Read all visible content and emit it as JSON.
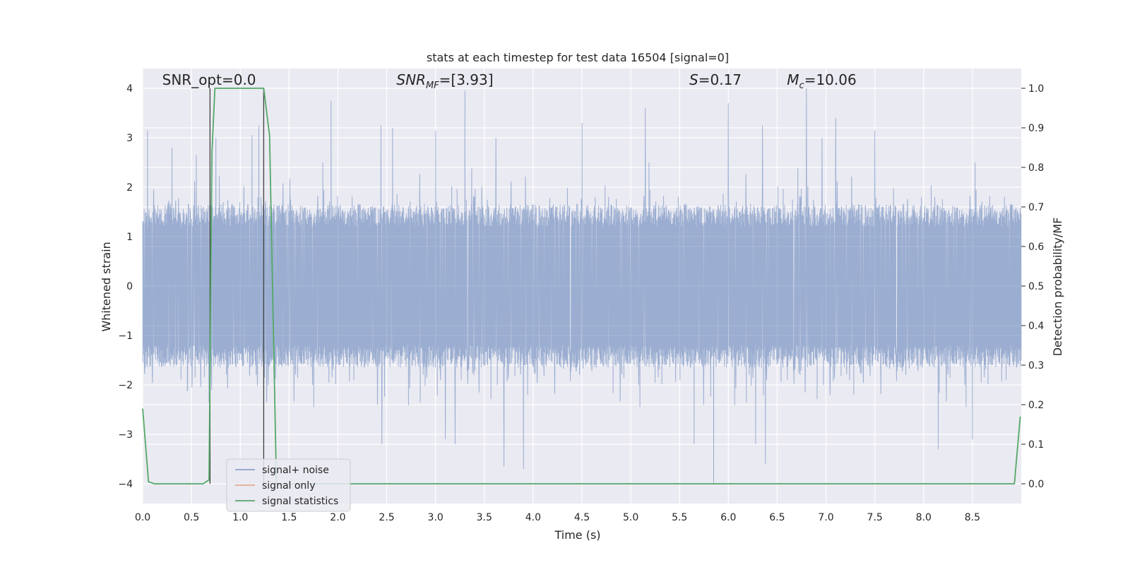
{
  "chart_data": {
    "type": "line",
    "title": "stats at each timestep for test data 16504 [signal=0]",
    "xlabel": "Time (s)",
    "ylabel": "Whitened strain",
    "y2label": "Detection probability/MF",
    "xlim": [
      0.0,
      9.0
    ],
    "ylim": [
      -4.4,
      4.4
    ],
    "y2lim": [
      -0.05,
      1.05
    ],
    "x_ticks": [
      0.0,
      0.5,
      1.0,
      1.5,
      2.0,
      2.5,
      3.0,
      3.5,
      4.0,
      4.5,
      5.0,
      5.5,
      6.0,
      6.5,
      7.0,
      7.5,
      8.0,
      8.5
    ],
    "x_tick_labels": [
      "0.0",
      "0.5",
      "1.0",
      "1.5",
      "2.0",
      "2.5",
      "3.0",
      "3.5",
      "4.0",
      "4.5",
      "5.0",
      "5.5",
      "6.0",
      "6.5",
      "7.0",
      "7.5",
      "8.0",
      "8.5"
    ],
    "y_ticks": [
      -4,
      -3,
      -2,
      -1,
      0,
      1,
      2,
      3,
      4
    ],
    "y_tick_labels": [
      "−4",
      "−3",
      "−2",
      "−1",
      "0",
      "1",
      "2",
      "3",
      "4"
    ],
    "y2_ticks": [
      0.0,
      0.1,
      0.2,
      0.3,
      0.4,
      0.5,
      0.6,
      0.7,
      0.8,
      0.9,
      1.0
    ],
    "y2_tick_labels": [
      "0.0",
      "0.1",
      "0.2",
      "0.3",
      "0.4",
      "0.5",
      "0.6",
      "0.7",
      "0.8",
      "0.9",
      "1.0"
    ],
    "grid": true,
    "background": "#eaeaf2",
    "annotations": [
      {
        "text": "SNR_opt=0.0",
        "x": 0.2,
        "y": 4.1
      },
      {
        "text": "SNR_MF=[3.93]",
        "x": 2.6,
        "y": 4.1
      },
      {
        "text": "S=0.17",
        "x": 5.6,
        "y": 4.1
      },
      {
        "text": "M_c=10.06",
        "x": 6.6,
        "y": 4.1
      }
    ],
    "vertical_lines": [
      0.69,
      1.24
    ],
    "series": [
      {
        "name": "signal+ noise",
        "color": "#4c72b0",
        "axis": "left",
        "kind": "noise",
        "amplitude_typical": 1.6,
        "peaks": [
          {
            "x": 0.05,
            "y": 3.15
          },
          {
            "x": 0.3,
            "y": 2.8
          },
          {
            "x": 0.55,
            "y": 2.65
          },
          {
            "x": 0.75,
            "y": 3.0
          },
          {
            "x": 1.12,
            "y": 3.05
          },
          {
            "x": 1.19,
            "y": 3.25
          },
          {
            "x": 1.93,
            "y": 3.75
          },
          {
            "x": 2.44,
            "y": 3.25
          },
          {
            "x": 2.56,
            "y": 3.2
          },
          {
            "x": 3.0,
            "y": 3.15
          },
          {
            "x": 3.3,
            "y": 3.95
          },
          {
            "x": 4.5,
            "y": 3.3
          },
          {
            "x": 5.15,
            "y": 3.6
          },
          {
            "x": 6.0,
            "y": 3.7
          },
          {
            "x": 6.35,
            "y": 3.25
          },
          {
            "x": 6.8,
            "y": 4.0
          },
          {
            "x": 7.1,
            "y": 3.4
          },
          {
            "x": 7.5,
            "y": 3.15
          },
          {
            "x": 0.68,
            "y": -2.35
          },
          {
            "x": 1.27,
            "y": -2.35
          },
          {
            "x": 2.45,
            "y": -3.2
          },
          {
            "x": 3.1,
            "y": -3.1
          },
          {
            "x": 3.2,
            "y": -3.2
          },
          {
            "x": 3.7,
            "y": -3.65
          },
          {
            "x": 3.9,
            "y": -3.7
          },
          {
            "x": 5.65,
            "y": -3.2
          },
          {
            "x": 5.85,
            "y": -4.0
          },
          {
            "x": 6.28,
            "y": -3.2
          },
          {
            "x": 6.38,
            "y": -3.6
          },
          {
            "x": 8.15,
            "y": -3.3
          },
          {
            "x": 8.5,
            "y": -3.1
          }
        ]
      },
      {
        "name": "signal only",
        "color": "#dd8452",
        "axis": "left",
        "kind": "line",
        "points": []
      },
      {
        "name": "signal statistics",
        "color": "#55a868",
        "axis": "right",
        "kind": "line",
        "points": [
          [
            0.0,
            0.19
          ],
          [
            0.06,
            0.005
          ],
          [
            0.12,
            0.0
          ],
          [
            0.62,
            0.0
          ],
          [
            0.68,
            0.01
          ],
          [
            0.71,
            0.84
          ],
          [
            0.74,
            1.0
          ],
          [
            1.24,
            1.0
          ],
          [
            1.3,
            0.88
          ],
          [
            1.37,
            0.0
          ],
          [
            8.93,
            0.0
          ],
          [
            8.99,
            0.17
          ]
        ]
      }
    ],
    "legend": {
      "position": "lower-left",
      "entries": [
        "signal+ noise",
        "signal only",
        "signal statistics"
      ]
    }
  }
}
